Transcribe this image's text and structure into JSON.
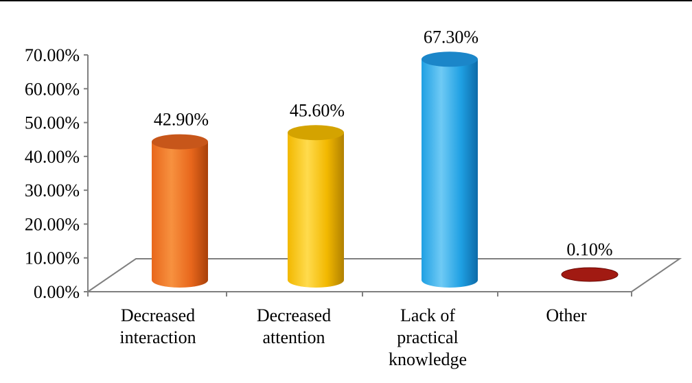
{
  "chart_data": {
    "type": "bar",
    "style": "3d-cylinder",
    "categories": [
      [
        "Decreased",
        "interaction"
      ],
      [
        "Decreased",
        "attention"
      ],
      [
        "Lack of",
        "practical",
        "knowledge"
      ],
      [
        "Other"
      ]
    ],
    "values": [
      42.9,
      45.6,
      67.3,
      0.1
    ],
    "value_labels": [
      "42.90%",
      "45.60%",
      "67.30%",
      "0.10%"
    ],
    "y_ticks": [
      "0.00%",
      "10.00%",
      "20.00%",
      "30.00%",
      "40.00%",
      "50.00%",
      "60.00%",
      "70.00%"
    ],
    "ylim": [
      0,
      70
    ],
    "grid": false,
    "legend": "none",
    "colors": {
      "bars": [
        {
          "light": "#f7913f",
          "mid": "#e8671c",
          "dark": "#a8400a",
          "top": "#c7561a"
        },
        {
          "light": "#ffdb4d",
          "mid": "#f2b800",
          "dark": "#b08000",
          "top": "#d4a300"
        },
        {
          "light": "#6fcaf5",
          "mid": "#1fa0e3",
          "dark": "#0d6aa8",
          "top": "#1b86c9"
        },
        {
          "light": "#c43a2a",
          "mid": "#a11a12",
          "dark": "#6b0a06",
          "top": "#9a1510"
        }
      ],
      "axis": "#7f7f7f",
      "floor": "#7f7f7f"
    }
  }
}
